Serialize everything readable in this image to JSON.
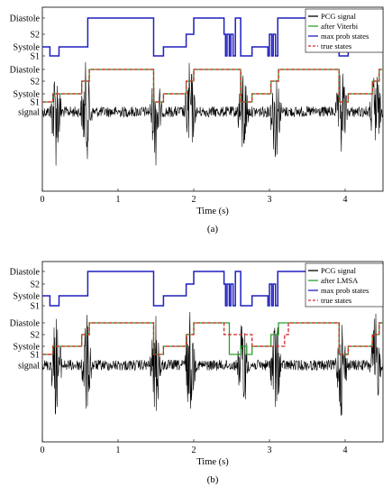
{
  "chart_data": [
    {
      "type": "line",
      "caption": "(a)",
      "xlabel": "Time (s)",
      "xlim": [
        0,
        4.5
      ],
      "x_ticks": [
        "0",
        "1",
        "2",
        "3",
        "4"
      ],
      "x_tick_values": [
        0,
        1,
        2,
        3,
        4
      ],
      "grid": false,
      "legend_position": "top-right",
      "y_tick_labels": [
        "Diastole",
        "S2",
        "Systole",
        "S1",
        "Diastole",
        "S2",
        "Systole",
        "S1",
        "signal"
      ],
      "series": [
        {
          "name": "PCG signal",
          "color": "#000000",
          "style": "solid"
        },
        {
          "name": "after Viterbi",
          "color": "#2ca02c",
          "style": "solid",
          "states": [
            [
              0,
              3
            ],
            [
              0.14,
              2
            ],
            [
              0.52,
              1
            ],
            [
              0.62,
              0
            ],
            [
              1.47,
              3
            ],
            [
              1.6,
              2
            ],
            [
              1.9,
              1
            ],
            [
              2.0,
              0
            ],
            [
              2.62,
              3
            ],
            [
              2.77,
              2
            ],
            [
              3.02,
              1
            ],
            [
              3.12,
              0
            ],
            [
              3.92,
              3
            ],
            [
              4.04,
              2
            ],
            [
              4.36,
              1
            ],
            [
              4.45,
              0
            ]
          ]
        },
        {
          "name": "max prob states",
          "color": "#1f1fbf",
          "style": "solid",
          "states": [
            [
              0,
              2
            ],
            [
              0.1,
              3
            ],
            [
              0.22,
              2
            ],
            [
              0.6,
              0
            ],
            [
              1.47,
              3
            ],
            [
              1.6,
              2
            ],
            [
              1.9,
              1
            ],
            [
              2.0,
              0
            ],
            [
              2.4,
              1
            ],
            [
              2.42,
              3
            ],
            [
              2.44,
              1
            ],
            [
              2.47,
              3
            ],
            [
              2.49,
              1
            ],
            [
              2.52,
              3
            ],
            [
              2.55,
              0
            ],
            [
              2.62,
              3
            ],
            [
              2.77,
              2
            ],
            [
              2.98,
              3
            ],
            [
              3.0,
              1
            ],
            [
              3.03,
              3
            ],
            [
              3.05,
              1
            ],
            [
              3.08,
              3
            ],
            [
              3.11,
              0
            ],
            [
              3.92,
              3
            ],
            [
              4.04,
              2
            ],
            [
              4.36,
              1
            ],
            [
              4.45,
              0
            ]
          ]
        },
        {
          "name": "true states",
          "color": "#d62728",
          "style": "dashed",
          "states": [
            [
              0,
              3
            ],
            [
              0.14,
              2
            ],
            [
              0.52,
              1
            ],
            [
              0.62,
              0
            ],
            [
              1.47,
              3
            ],
            [
              1.6,
              2
            ],
            [
              1.9,
              1
            ],
            [
              2.0,
              0
            ],
            [
              2.62,
              3
            ],
            [
              2.77,
              2
            ],
            [
              3.02,
              1
            ],
            [
              3.12,
              0
            ],
            [
              3.92,
              3
            ],
            [
              4.04,
              2
            ],
            [
              4.36,
              1
            ],
            [
              4.45,
              0
            ]
          ]
        }
      ],
      "s1_times": [
        0.18,
        1.5,
        2.65,
        3.95
      ],
      "s2_times": [
        0.58,
        1.95,
        3.08,
        4.4
      ]
    },
    {
      "type": "line",
      "caption": "(b)",
      "xlabel": "Time (s)",
      "xlim": [
        0,
        4.5
      ],
      "x_ticks": [
        "0",
        "1",
        "2",
        "3",
        "4"
      ],
      "x_tick_values": [
        0,
        1,
        2,
        3,
        4
      ],
      "grid": false,
      "legend_position": "top-right",
      "y_tick_labels": [
        "Diastole",
        "S2",
        "Systole",
        "S1",
        "Diastole",
        "S2",
        "Systole",
        "S1",
        "signal"
      ],
      "series": [
        {
          "name": "PCG signal",
          "color": "#000000",
          "style": "solid"
        },
        {
          "name": "after LMSA",
          "color": "#2ca02c",
          "style": "solid",
          "states": [
            [
              0,
              3
            ],
            [
              0.14,
              2
            ],
            [
              0.52,
              1
            ],
            [
              0.62,
              0
            ],
            [
              1.47,
              3
            ],
            [
              1.6,
              2
            ],
            [
              1.9,
              1
            ],
            [
              2.0,
              0
            ],
            [
              2.47,
              3
            ],
            [
              2.62,
              2
            ],
            [
              2.7,
              3
            ],
            [
              2.77,
              2
            ],
            [
              3.02,
              1
            ],
            [
              3.12,
              0
            ],
            [
              3.92,
              3
            ],
            [
              4.04,
              2
            ],
            [
              4.36,
              1
            ],
            [
              4.45,
              0
            ]
          ]
        },
        {
          "name": "max prob states",
          "color": "#1f1fbf",
          "style": "solid",
          "states": [
            [
              0,
              2
            ],
            [
              0.1,
              3
            ],
            [
              0.22,
              2
            ],
            [
              0.6,
              0
            ],
            [
              1.47,
              3
            ],
            [
              1.6,
              2
            ],
            [
              1.9,
              1
            ],
            [
              2.0,
              0
            ],
            [
              2.4,
              1
            ],
            [
              2.42,
              3
            ],
            [
              2.44,
              1
            ],
            [
              2.47,
              3
            ],
            [
              2.49,
              1
            ],
            [
              2.52,
              3
            ],
            [
              2.55,
              0
            ],
            [
              2.62,
              3
            ],
            [
              2.77,
              2
            ],
            [
              2.98,
              3
            ],
            [
              3.0,
              1
            ],
            [
              3.03,
              3
            ],
            [
              3.05,
              1
            ],
            [
              3.08,
              3
            ],
            [
              3.11,
              0
            ],
            [
              3.92,
              3
            ],
            [
              4.04,
              2
            ],
            [
              4.36,
              1
            ],
            [
              4.45,
              0
            ]
          ]
        },
        {
          "name": "true states",
          "color": "#d62728",
          "style": "dashed",
          "states": [
            [
              0,
              3
            ],
            [
              0.14,
              2
            ],
            [
              0.52,
              1
            ],
            [
              0.62,
              0
            ],
            [
              1.47,
              3
            ],
            [
              1.6,
              2
            ],
            [
              1.9,
              1
            ],
            [
              2.0,
              0
            ],
            [
              2.4,
              1
            ],
            [
              2.77,
              2
            ],
            [
              3.2,
              1
            ],
            [
              3.25,
              0
            ],
            [
              3.92,
              3
            ],
            [
              4.04,
              2
            ],
            [
              4.36,
              1
            ],
            [
              4.45,
              0
            ]
          ]
        }
      ],
      "s1_times": [
        0.18,
        1.5,
        2.65,
        3.95
      ],
      "s2_times": [
        0.58,
        1.95,
        3.08,
        4.4
      ]
    }
  ]
}
